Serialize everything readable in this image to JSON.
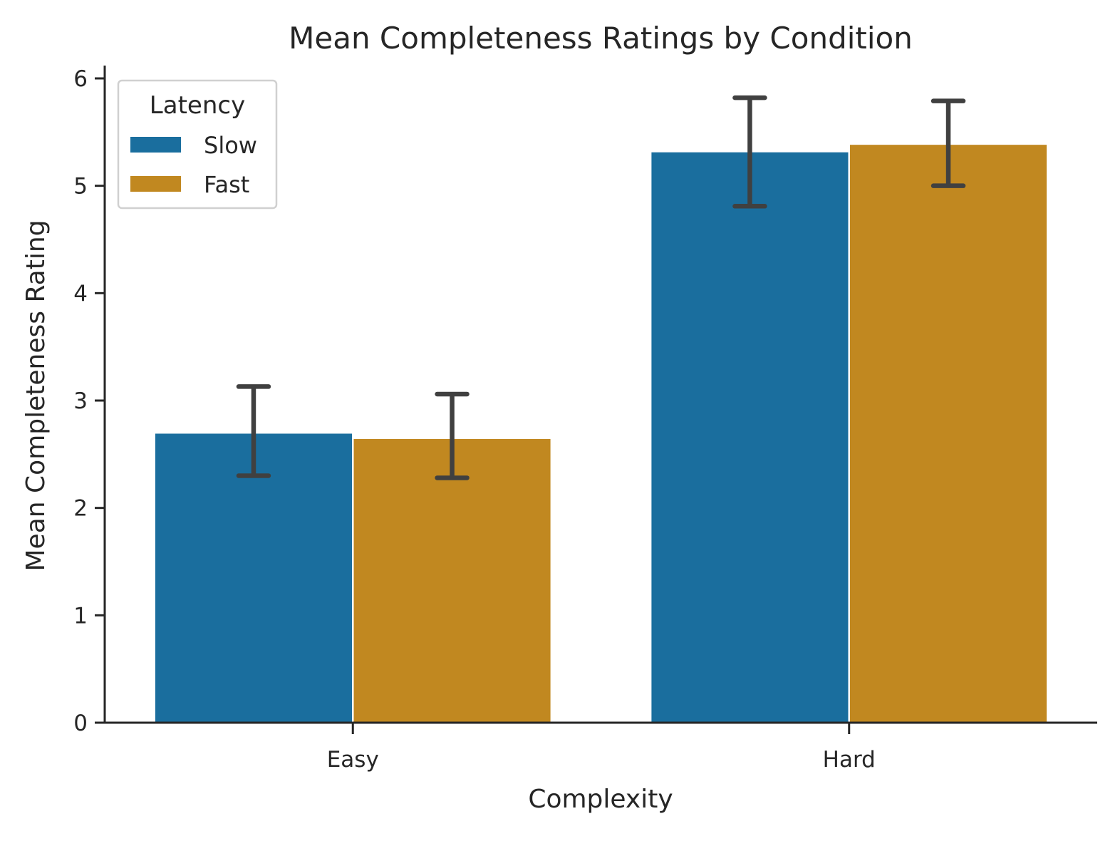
{
  "chart_data": {
    "type": "bar",
    "title": "Mean Completeness Ratings by Condition",
    "xlabel": "Complexity",
    "ylabel": "Mean Completeness Rating",
    "categories": [
      "Easy",
      "Hard"
    ],
    "ylim": [
      0,
      6.1
    ],
    "yticks": [
      0,
      1,
      2,
      3,
      4,
      5,
      6
    ],
    "grid": false,
    "legend": {
      "title": "Latency",
      "position": "top-left"
    },
    "series": [
      {
        "name": "Slow",
        "color": "#1a6e9e",
        "values": [
          2.7,
          5.32
        ],
        "error_low": [
          2.3,
          4.81
        ],
        "error_high": [
          3.13,
          5.82
        ]
      },
      {
        "name": "Fast",
        "color": "#c18820",
        "values": [
          2.65,
          5.39
        ],
        "error_low": [
          2.28,
          5.0
        ],
        "error_high": [
          3.06,
          5.79
        ]
      }
    ],
    "error_bar_color": "#404040"
  }
}
